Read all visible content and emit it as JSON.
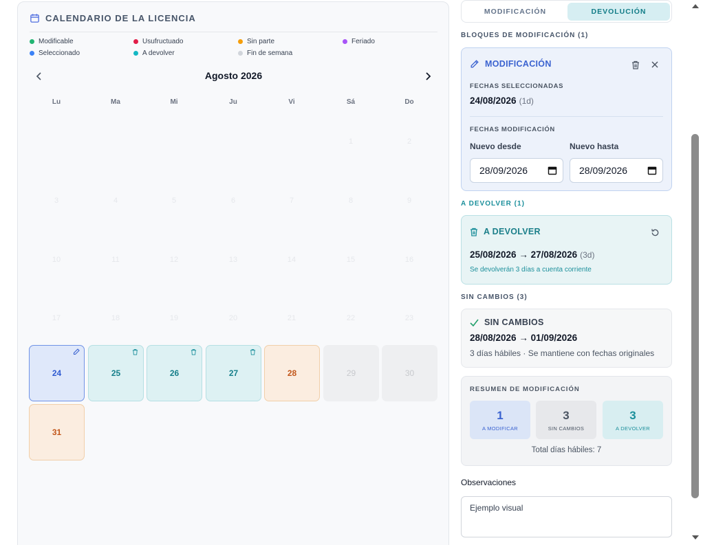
{
  "calendar": {
    "title": "CALENDARIO DE LA LICENCIA",
    "month": "Agosto 2026",
    "legend": [
      {
        "label": "Modificable",
        "color": "#22b573"
      },
      {
        "label": "Usufructuado",
        "color": "#e11d48"
      },
      {
        "label": "Sin parte",
        "color": "#f59e0b"
      },
      {
        "label": "Feriado",
        "color": "#a855f7"
      },
      {
        "label": "Seleccionado",
        "color": "#3b82f6"
      },
      {
        "label": "A devolver",
        "color": "#14b8c4"
      },
      {
        "label": "Fin de semana",
        "color": "#d1d5db"
      }
    ],
    "weekdays": [
      "Lu",
      "Ma",
      "Mi",
      "Ju",
      "Vi",
      "Sá",
      "Do"
    ],
    "faint_days": [
      "1",
      "2",
      "3",
      "4",
      "5",
      "6",
      "7",
      "8",
      "9",
      "10",
      "11",
      "12",
      "13",
      "14",
      "15",
      "16",
      "17",
      "18",
      "19",
      "20",
      "21",
      "22",
      "23"
    ],
    "active_days": [
      {
        "day": "24",
        "status": "sel"
      },
      {
        "day": "25",
        "status": "dev"
      },
      {
        "day": "26",
        "status": "dev"
      },
      {
        "day": "27",
        "status": "dev"
      },
      {
        "day": "28",
        "status": "sinparte"
      },
      {
        "day": "29",
        "status": "weekend"
      },
      {
        "day": "30",
        "status": "weekend"
      },
      {
        "day": "31",
        "status": "sinparte"
      }
    ]
  },
  "tabs": {
    "modificacion": "MODIFICACIÓN",
    "devolucion": "DEVOLUCIÓN",
    "active": "devolucion"
  },
  "bloques": {
    "label": "BLOQUES DE MODIFICACIÓN (1)",
    "card_title": "MODIFICACIÓN",
    "fechas_sel_label": "FECHAS SELECCIONADAS",
    "fechas_sel": "24/08/2026",
    "fechas_sel_days": "(1d)",
    "fechas_mod_label": "FECHAS MODIFICACIÓN",
    "desde_label": "Nuevo desde",
    "hasta_label": "Nuevo hasta",
    "desde_value": "28/09/2026",
    "hasta_value": "28/09/2026"
  },
  "devolver": {
    "label": "A DEVOLVER (1)",
    "card_title": "A DEVOLVER",
    "range": "25/08/2026 → 27/08/2026",
    "days": "(3d)",
    "note": "Se devolverán 3 días a cuenta corriente"
  },
  "sin_cambios": {
    "label": "SIN CAMBIOS (3)",
    "card_title": "SIN CAMBIOS",
    "range": "28/08/2026 → 01/09/2026",
    "note": "3 días hábiles · Se mantiene con fechas originales"
  },
  "resumen": {
    "title": "RESUMEN DE MODIFICACIÓN",
    "stats": [
      {
        "value": "1",
        "label": "A MODIFICAR"
      },
      {
        "value": "3",
        "label": "SIN CAMBIOS"
      },
      {
        "value": "3",
        "label": "A DEVOLVER"
      }
    ],
    "total": "Total días hábiles: 7"
  },
  "observaciones": {
    "label": "Observaciones",
    "value": "Ejemplo visual"
  }
}
